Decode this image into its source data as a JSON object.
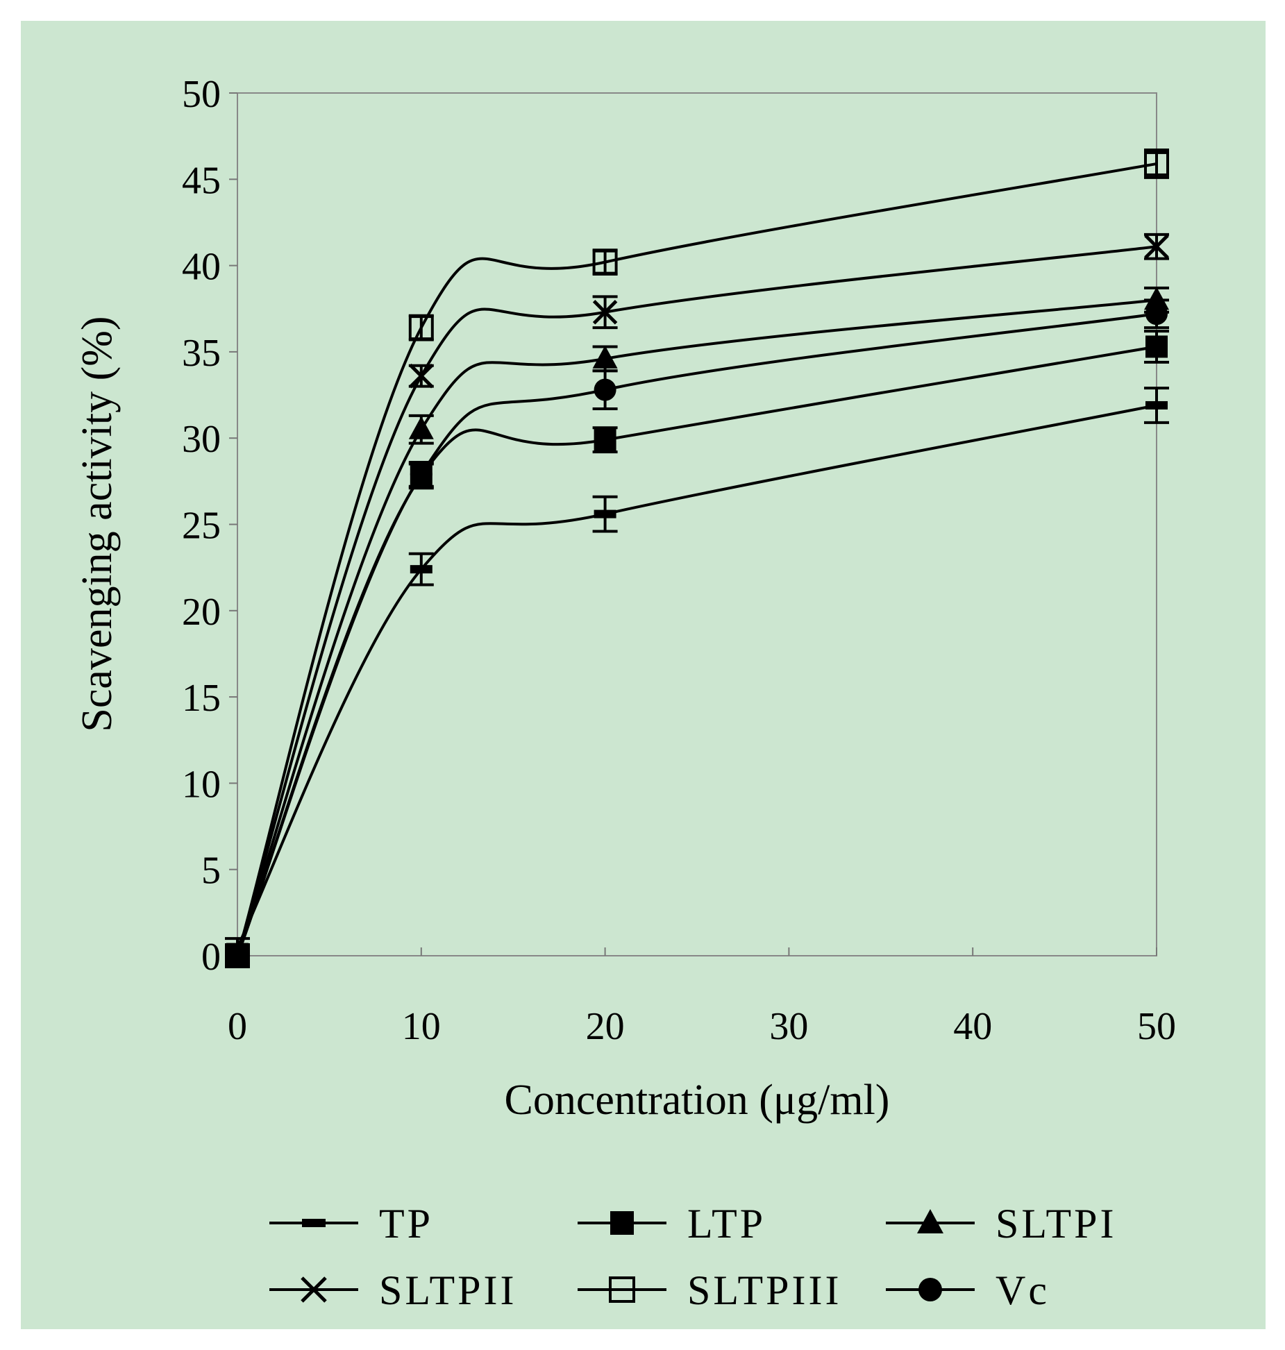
{
  "chart_data": {
    "type": "line",
    "title": "",
    "xlabel": "Concentration (μg/ml)",
    "ylabel": "Scavenging activity (%)",
    "x": [
      0,
      10,
      20,
      50
    ],
    "xlim": [
      0,
      50
    ],
    "ylim": [
      0,
      50
    ],
    "xticks": [
      0,
      10,
      20,
      30,
      40,
      50
    ],
    "yticks": [
      0,
      5,
      10,
      15,
      20,
      25,
      30,
      35,
      40,
      45,
      50
    ],
    "xtick_labels": [
      "0",
      "10",
      "20",
      "30",
      "40",
      "50"
    ],
    "ytick_labels": [
      "0",
      "5",
      "10",
      "15",
      "20",
      "25",
      "30",
      "35",
      "40",
      "45",
      "50"
    ],
    "grid": false,
    "legend_position": "bottom",
    "background": "#cce6d0",
    "line_color": "#000000",
    "series": [
      {
        "name": "TP",
        "marker": "dash",
        "values": [
          0.5,
          22.4,
          25.6,
          31.9
        ],
        "errors": [
          0.5,
          0.9,
          1.0,
          1.0
        ]
      },
      {
        "name": "LTP",
        "marker": "filled-square",
        "values": [
          0.0,
          27.8,
          29.9,
          35.3
        ],
        "errors": [
          0.3,
          0.7,
          0.7,
          0.9
        ]
      },
      {
        "name": "SLTPI",
        "marker": "filled-triangle",
        "values": [
          0.0,
          30.5,
          34.6,
          38.0
        ],
        "errors": [
          0.3,
          0.8,
          0.7,
          0.7
        ]
      },
      {
        "name": "SLTPII",
        "marker": "x",
        "values": [
          0.0,
          33.6,
          37.3,
          41.1
        ],
        "errors": [
          0.3,
          0.6,
          0.9,
          0.7
        ]
      },
      {
        "name": "SLTPIII",
        "marker": "open-square",
        "values": [
          0.0,
          36.4,
          40.2,
          45.9
        ],
        "errors": [
          0.3,
          0.7,
          0.7,
          0.8
        ]
      },
      {
        "name": "Vc",
        "marker": "filled-circle",
        "values": [
          0.0,
          27.9,
          32.8,
          37.2
        ],
        "errors": [
          0.3,
          0.7,
          1.1,
          0.8
        ]
      }
    ]
  }
}
